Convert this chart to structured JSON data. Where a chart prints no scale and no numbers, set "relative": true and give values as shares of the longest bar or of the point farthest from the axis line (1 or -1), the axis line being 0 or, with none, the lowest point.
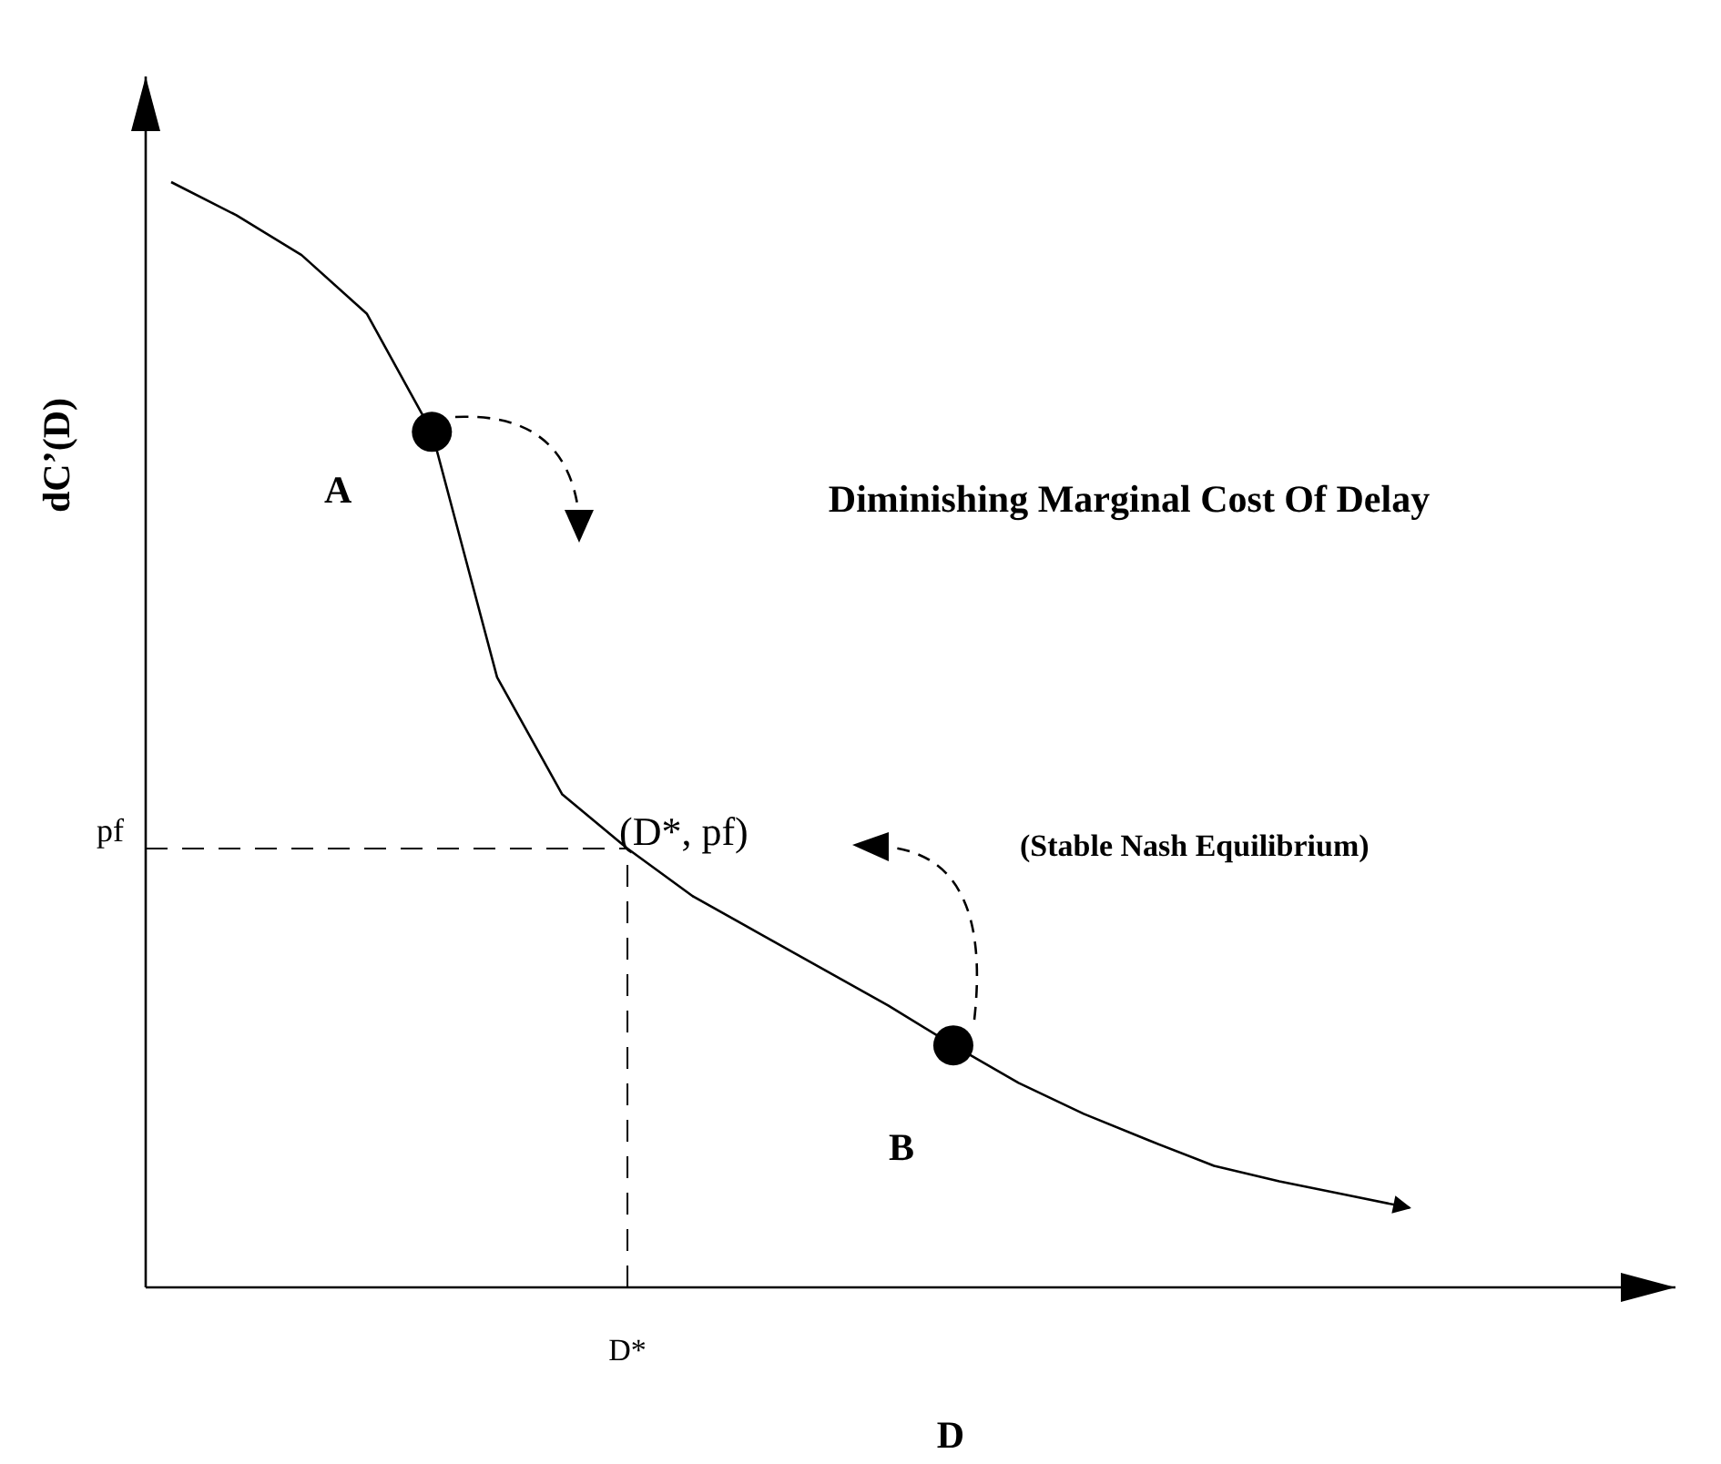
{
  "chart_data": {
    "type": "line",
    "relative": true,
    "title": "Diminishing Marginal Cost Of Delay",
    "xlabel": "D",
    "ylabel": "dC’(D)",
    "categories": [
      null,
      null,
      null,
      null,
      null,
      null,
      null,
      null,
      null,
      null,
      null,
      null,
      null,
      null,
      null,
      null,
      null,
      null,
      null,
      null
    ],
    "series": [
      {
        "color": "#000000",
        "marker": "none",
        "line_style": "solid",
        "values": [
          1.0,
          0.97,
          0.934,
          0.881,
          0.774,
          0.552,
          0.446,
          0.397,
          0.354,
          0.321,
          0.288,
          0.255,
          0.219,
          0.185,
          0.157,
          0.133,
          0.11,
          0.096,
          0.084,
          0.072
        ]
      }
    ],
    "ref_lines": [
      {
        "axis": "y",
        "value": 0.397,
        "label": "pf",
        "line_style": "dashed",
        "color": "#000000"
      },
      {
        "axis": "x",
        "value": "D*",
        "line_style": "dashed",
        "color": "#000000"
      }
    ],
    "annotations": [
      "A",
      "B",
      "(D*, pf)",
      "(Stable Nash Equilibrium)"
    ]
  }
}
